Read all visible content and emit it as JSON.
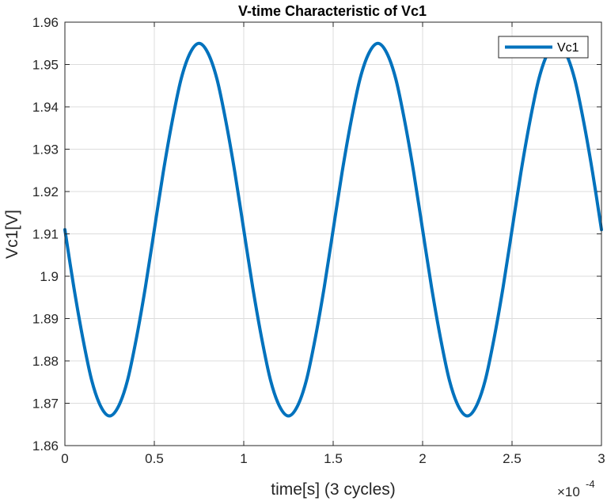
{
  "chart_data": {
    "type": "line",
    "title": "V-time Characteristic of Vc1",
    "xlabel": "time[s] (3 cycles)",
    "ylabel": "Vc1[V]",
    "x_exponent_label": "×10",
    "x_exponent_power": "-4",
    "xlim": [
      0,
      3
    ],
    "ylim": [
      1.86,
      1.96
    ],
    "x_ticks": [
      0,
      0.5,
      1,
      1.5,
      2,
      2.5,
      3
    ],
    "x_tick_labels": [
      "0",
      "0.5",
      "1",
      "1.5",
      "2",
      "2.5",
      "3"
    ],
    "y_ticks": [
      1.86,
      1.87,
      1.88,
      1.89,
      1.9,
      1.91,
      1.92,
      1.93,
      1.94,
      1.95,
      1.96
    ],
    "y_tick_labels": [
      "1.86",
      "1.87",
      "1.88",
      "1.89",
      "1.9",
      "1.91",
      "1.92",
      "1.93",
      "1.94",
      "1.95",
      "1.96"
    ],
    "grid": true,
    "legend_position": "top-right",
    "series": [
      {
        "name": "Vc1",
        "color": "#0072BD",
        "x": [
          0,
          0.05,
          0.1,
          0.15,
          0.2,
          0.25,
          0.3,
          0.35,
          0.4,
          0.45,
          0.5,
          0.55,
          0.6,
          0.65,
          0.7,
          0.75,
          0.8,
          0.85,
          0.9,
          0.95,
          1.0,
          1.05,
          1.1,
          1.15,
          1.2,
          1.25,
          1.3,
          1.35,
          1.4,
          1.45,
          1.5,
          1.55,
          1.6,
          1.65,
          1.7,
          1.75,
          1.8,
          1.85,
          1.9,
          1.95,
          2.0,
          2.05,
          2.1,
          2.15,
          2.2,
          2.25,
          2.3,
          2.35,
          2.4,
          2.45,
          2.5,
          2.55,
          2.6,
          2.65,
          2.7,
          2.75,
          2.8,
          2.85,
          2.9,
          2.95,
          3.0
        ],
        "y": [
          1.911,
          1.8974,
          1.8854,
          1.8754,
          1.8693,
          1.867,
          1.8693,
          1.8754,
          1.8854,
          1.8974,
          1.911,
          1.9246,
          1.9366,
          1.9466,
          1.9527,
          1.955,
          1.9527,
          1.9466,
          1.9366,
          1.9246,
          1.911,
          1.8974,
          1.8854,
          1.8754,
          1.8693,
          1.867,
          1.8693,
          1.8754,
          1.8854,
          1.8974,
          1.911,
          1.9246,
          1.9366,
          1.9466,
          1.9527,
          1.955,
          1.9527,
          1.9466,
          1.9366,
          1.9246,
          1.911,
          1.8974,
          1.8854,
          1.8754,
          1.8693,
          1.867,
          1.8693,
          1.8754,
          1.8854,
          1.8974,
          1.911,
          1.9246,
          1.9366,
          1.9466,
          1.9527,
          1.955,
          1.9527,
          1.9466,
          1.9366,
          1.9246,
          1.911
        ]
      }
    ]
  }
}
